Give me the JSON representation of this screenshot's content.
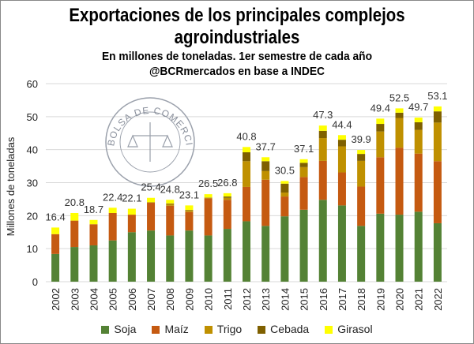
{
  "chart_data": {
    "type": "bar",
    "stacked": true,
    "title": "Exportaciones de los principales complejos agroindustriales",
    "title_lines": [
      "Exportaciones de los principales complejos",
      "agroindustriales"
    ],
    "subtitle": "En millones de toneladas. 1er semestre de cada año",
    "source": "@BCRmercados en base a INDEC",
    "watermark": "BOLSA DE COMERCIO DE ROSARIO",
    "xlabel": "",
    "ylabel": "Millones de toneladas",
    "ylim": [
      0,
      60
    ],
    "yticks": [
      0,
      10,
      20,
      30,
      40,
      50,
      60
    ],
    "grid": true,
    "legend_position": "bottom",
    "categories": [
      "2002",
      "2003",
      "2004",
      "2005",
      "2006",
      "2007",
      "2008",
      "2009",
      "2010",
      "2011",
      "2012",
      "2013",
      "2014",
      "2015",
      "2016",
      "2017",
      "2018",
      "2019",
      "2020",
      "2021",
      "2022"
    ],
    "totals": [
      16.4,
      20.8,
      18.7,
      22.4,
      22.1,
      25.4,
      24.8,
      23.1,
      26.5,
      26.8,
      40.8,
      37.7,
      30.5,
      37.1,
      47.3,
      44.4,
      39.9,
      49.4,
      52.5,
      49.7,
      53.1
    ],
    "series": [
      {
        "name": "Soja",
        "color": "#548235",
        "values": [
          8.4,
          10.5,
          11.0,
          12.5,
          15.0,
          15.5,
          14.0,
          15.5,
          14.0,
          16.0,
          18.3,
          16.9,
          19.8,
          21.8,
          24.8,
          23.1,
          16.9,
          20.6,
          20.3,
          21.2,
          17.7
        ]
      },
      {
        "name": "Maíz",
        "color": "#C55A11",
        "values": [
          6.0,
          8.0,
          6.4,
          8.3,
          5.3,
          8.4,
          9.0,
          5.6,
          11.2,
          8.8,
          10.4,
          14.0,
          6.0,
          9.9,
          11.8,
          10.0,
          11.9,
          17.1,
          20.3,
          17.6,
          18.8
        ]
      },
      {
        "name": "Trigo",
        "color": "#BF9000",
        "values": [
          0,
          0,
          0,
          0,
          0,
          0.2,
          0.5,
          0.4,
          0.2,
          0.6,
          7.8,
          2.6,
          1.2,
          3.0,
          6.9,
          7.9,
          7.8,
          7.8,
          9.0,
          7.2,
          11.7
        ]
      },
      {
        "name": "Cebada",
        "color": "#7F6000",
        "values": [
          0,
          0,
          0,
          0,
          0,
          0,
          0.2,
          0.2,
          0.1,
          0.4,
          2.7,
          3.0,
          2.7,
          1.3,
          2.2,
          2.0,
          2.1,
          2.3,
          1.6,
          2.3,
          3.4
        ]
      },
      {
        "name": "Girasol",
        "color": "#FFFF00",
        "values": [
          2.0,
          2.3,
          1.3,
          1.6,
          1.8,
          1.3,
          1.1,
          1.4,
          1.0,
          1.0,
          1.6,
          1.2,
          0.8,
          1.1,
          1.6,
          1.4,
          1.2,
          1.6,
          1.3,
          1.4,
          1.5
        ]
      }
    ]
  }
}
